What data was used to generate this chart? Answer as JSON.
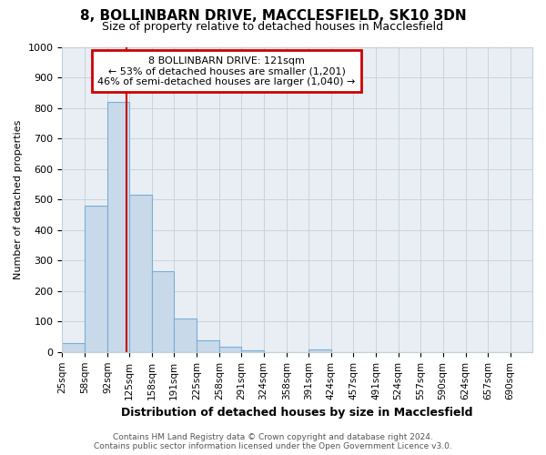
{
  "title": "8, BOLLINBARN DRIVE, MACCLESFIELD, SK10 3DN",
  "subtitle": "Size of property relative to detached houses in Macclesfield",
  "xlabel": "Distribution of detached houses by size in Macclesfield",
  "ylabel": "Number of detached properties",
  "bin_labels": [
    "25sqm",
    "58sqm",
    "92sqm",
    "125sqm",
    "158sqm",
    "191sqm",
    "225sqm",
    "258sqm",
    "291sqm",
    "324sqm",
    "358sqm",
    "391sqm",
    "424sqm",
    "457sqm",
    "491sqm",
    "524sqm",
    "557sqm",
    "590sqm",
    "624sqm",
    "657sqm",
    "690sqm"
  ],
  "bin_edges": [
    25,
    58,
    92,
    125,
    158,
    191,
    225,
    258,
    291,
    324,
    358,
    391,
    424,
    457,
    491,
    524,
    557,
    590,
    624,
    657,
    690
  ],
  "bar_heights": [
    30,
    480,
    820,
    515,
    265,
    110,
    38,
    18,
    5,
    0,
    0,
    8,
    0,
    0,
    0,
    0,
    0,
    0,
    0,
    0,
    0
  ],
  "bar_color": "#c8d9ea",
  "bar_edge_color": "#7aaed4",
  "vline_x": 121,
  "vline_color": "#cc0000",
  "ylim": [
    0,
    1000
  ],
  "annotation_text": "8 BOLLINBARN DRIVE: 121sqm\n← 53% of detached houses are smaller (1,201)\n46% of semi-detached houses are larger (1,040) →",
  "annotation_box_color": "#ffffff",
  "annotation_box_edge": "#cc0000",
  "footnote": "Contains HM Land Registry data © Crown copyright and database right 2024.\nContains public sector information licensed under the Open Government Licence v3.0.",
  "bg_color": "#ffffff",
  "plot_bg_color": "#e8eef4",
  "grid_color": "#c5cfd8",
  "title_fontsize": 11,
  "subtitle_fontsize": 9
}
